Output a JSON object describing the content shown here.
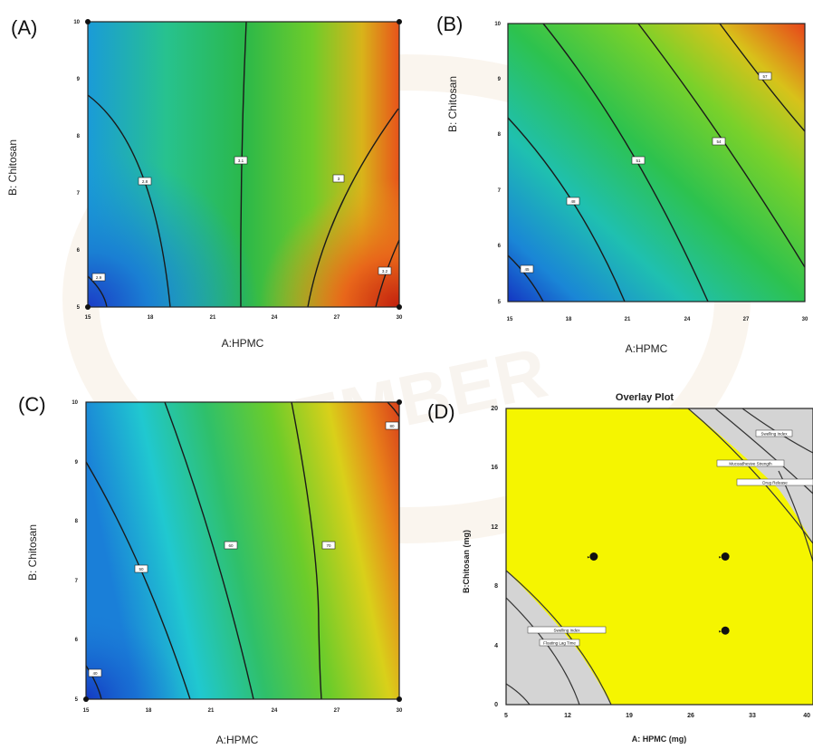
{
  "chart_data": [
    {
      "panel": "(A)",
      "type": "contour",
      "xlabel": "A:HPMC",
      "ylabel": "B: Chitosan",
      "xlim": [
        15,
        30
      ],
      "ylim": [
        5,
        10
      ],
      "xticks": [
        "15",
        "18",
        "21",
        "24",
        "27",
        "30"
      ],
      "yticks": [
        "5",
        "6",
        "7",
        "8",
        "9",
        "10"
      ],
      "contour_labels": [
        "2.9",
        "2.8",
        "3.1",
        "3",
        "3.2"
      ]
    },
    {
      "panel": "(B)",
      "type": "contour",
      "xlabel": "A:HPMC",
      "ylabel": "B: Chitosan",
      "xlim": [
        15,
        30
      ],
      "ylim": [
        5,
        10
      ],
      "xticks": [
        "15",
        "18",
        "21",
        "24",
        "27",
        "30"
      ],
      "yticks": [
        "5",
        "6",
        "7",
        "8",
        "9",
        "10"
      ],
      "contour_labels": [
        "45",
        "48",
        "51",
        "54",
        "57"
      ]
    },
    {
      "panel": "(C)",
      "type": "contour",
      "xlabel": "A:HPMC",
      "ylabel": "B: Chitosan",
      "xlim": [
        15,
        30
      ],
      "ylim": [
        5,
        10
      ],
      "xticks": [
        "15",
        "18",
        "21",
        "24",
        "27",
        "30"
      ],
      "yticks": [
        "5",
        "6",
        "7",
        "8",
        "9",
        "10"
      ],
      "contour_labels": [
        "40",
        "50",
        "60",
        "70",
        "80"
      ]
    },
    {
      "panel": "(D)",
      "type": "overlay",
      "title": "Overlay Plot",
      "xlabel": "A: HPMC (mg)",
      "ylabel": "B:Chitosan (mg)",
      "xlim": [
        5,
        40
      ],
      "ylim": [
        0,
        20
      ],
      "xticks": [
        "5",
        "12",
        "19",
        "26",
        "33",
        "40"
      ],
      "yticks": [
        "0",
        "4",
        "8",
        "12",
        "16",
        "20"
      ],
      "design_points": [
        {
          "x": 15,
          "y": 10
        },
        {
          "x": 30,
          "y": 10
        },
        {
          "x": 30,
          "y": 5
        }
      ],
      "boundary_labels": [
        "Swelling Index",
        "Mucoadhesive Strength",
        "Drug Release",
        "Swelling Index",
        "Floating Lag Time"
      ]
    }
  ],
  "watermark": "JEMBER"
}
